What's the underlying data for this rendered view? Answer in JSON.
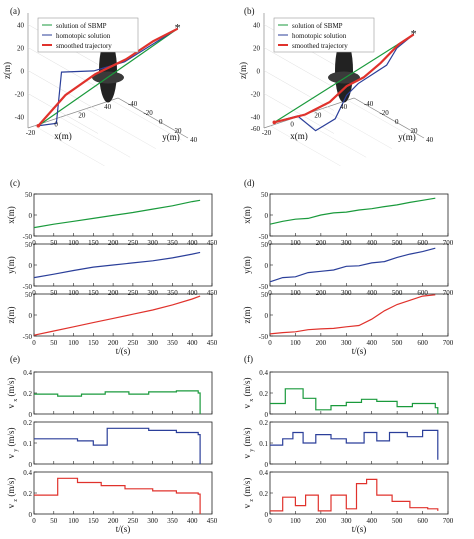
{
  "panel_labels": [
    "(a)",
    "(b)",
    "(c)",
    "(d)",
    "(e)",
    "(f)"
  ],
  "colors": {
    "green": "#1a9a3c",
    "blue": "#2b3f9a",
    "red": "#e0322c",
    "star": "#f08a24",
    "obstacle": "#222222"
  },
  "legend": [
    "solution of SBMP",
    "homotopic solution",
    "smoothed trajectory"
  ],
  "axis_labels": {
    "x3d": "x(m)",
    "y3d": "y(m)",
    "z3d": "z(m)",
    "x": "x(m)",
    "y": "y(m)",
    "z": "z(m)",
    "vx_main": "v",
    "vx_sub": "x",
    "vy_main": "v",
    "vy_sub": "y",
    "vz_main": "v",
    "vz_sub": "z",
    "vel_unit": "(m/s)",
    "time": "t/(s)"
  },
  "chart_data": [
    {
      "panel": "(a)",
      "type": "line",
      "view": "3d",
      "xlabel": "x(m)",
      "ylabel": "y(m)",
      "zlabel": "z(m)",
      "legend": [
        "solution of SBMP",
        "homotopic solution",
        "smoothed trajectory"
      ],
      "zticks": [
        "40",
        "20",
        "0",
        "-20",
        "-40"
      ],
      "xticks": [
        "-20",
        "0",
        "20",
        "40"
      ],
      "yticks": [
        "-40",
        "-20",
        "0",
        "20",
        "40"
      ],
      "series": [
        {
          "name": "solution of SBMP",
          "color": "green",
          "points": [
            [
              -20,
              -40,
              -48
            ],
            [
              40,
              40,
              45
            ]
          ]
        },
        {
          "name": "homotopic solution",
          "color": "blue",
          "points": [
            [
              -20,
              -40,
              -48
            ],
            [
              -12,
              -30,
              -45
            ],
            [
              -5,
              -35,
              -5
            ],
            [
              5,
              -10,
              2
            ],
            [
              18,
              8,
              12
            ],
            [
              40,
              40,
              45
            ]
          ]
        },
        {
          "name": "smoothed trajectory",
          "color": "red",
          "points": [
            [
              -20,
              -40,
              -48
            ],
            [
              -8,
              -25,
              -20
            ],
            [
              5,
              -8,
              0
            ],
            [
              18,
              10,
              15
            ],
            [
              30,
              25,
              32
            ],
            [
              40,
              40,
              45
            ]
          ]
        }
      ],
      "start": [
        -20,
        -40,
        -48
      ],
      "goal": [
        40,
        40,
        45
      ]
    },
    {
      "panel": "(b)",
      "type": "line",
      "view": "3d",
      "xlabel": "x(m)",
      "ylabel": "y(m)",
      "zlabel": "z(m)",
      "legend": [
        "solution of SBMP",
        "homotopic solution",
        "smoothed trajectory"
      ],
      "zticks": [
        "40",
        "20",
        "0",
        "-20",
        "-40",
        "-60"
      ],
      "xticks": [
        "-20",
        "0",
        "20",
        "40"
      ],
      "yticks": [
        "-40",
        "-20",
        "0",
        "20",
        "40"
      ],
      "series": [
        {
          "name": "solution of SBMP",
          "color": "green",
          "points": [
            [
              -20,
              -40,
              -45
            ],
            [
              40,
              40,
              40
            ]
          ]
        },
        {
          "name": "homotopic solution",
          "color": "blue",
          "points": [
            [
              -20,
              -40,
              -45
            ],
            [
              -8,
              -30,
              -40
            ],
            [
              0,
              -20,
              -52
            ],
            [
              8,
              -8,
              -40
            ],
            [
              12,
              0,
              -18
            ],
            [
              15,
              10,
              -5
            ],
            [
              20,
              20,
              5
            ],
            [
              25,
              30,
              15
            ],
            [
              30,
              35,
              30
            ],
            [
              40,
              40,
              40
            ]
          ]
        },
        {
          "name": "smoothed trajectory",
          "color": "red",
          "points": [
            [
              -20,
              -40,
              -45
            ],
            [
              -5,
              -25,
              -38
            ],
            [
              5,
              -10,
              -25
            ],
            [
              12,
              0,
              -10
            ],
            [
              18,
              12,
              0
            ],
            [
              24,
              24,
              15
            ],
            [
              32,
              34,
              32
            ],
            [
              40,
              40,
              40
            ]
          ]
        }
      ],
      "start": [
        -20,
        -40,
        -45
      ],
      "goal": [
        40,
        40,
        40
      ]
    },
    {
      "panel": "(c)",
      "type": "line",
      "xlabel": "t/(s)",
      "x_ticks": [
        0,
        50,
        100,
        150,
        200,
        250,
        300,
        350,
        400,
        450
      ],
      "xlim": [
        0,
        450
      ],
      "subplots": [
        {
          "ylabel": "x(m)",
          "ylim": [
            -50,
            50
          ],
          "yticks": [
            -50,
            0,
            50
          ],
          "color": "green",
          "x": [
            0,
            50,
            100,
            150,
            200,
            250,
            300,
            350,
            400,
            420
          ],
          "y": [
            -30,
            -22,
            -15,
            -8,
            -1,
            6,
            14,
            22,
            32,
            35
          ]
        },
        {
          "ylabel": "y(m)",
          "ylim": [
            -50,
            50
          ],
          "yticks": [
            -50,
            0,
            50
          ],
          "color": "blue",
          "x": [
            0,
            50,
            100,
            150,
            200,
            250,
            300,
            350,
            400,
            420
          ],
          "y": [
            -30,
            -22,
            -13,
            -5,
            0,
            5,
            10,
            17,
            26,
            30
          ]
        },
        {
          "ylabel": "z(m)",
          "ylim": [
            -50,
            50
          ],
          "yticks": [
            -50,
            0,
            50
          ],
          "color": "red",
          "x": [
            0,
            50,
            100,
            150,
            200,
            250,
            300,
            350,
            400,
            420
          ],
          "y": [
            -48,
            -38,
            -28,
            -18,
            -8,
            2,
            12,
            24,
            38,
            45
          ]
        }
      ]
    },
    {
      "panel": "(d)",
      "type": "line",
      "xlabel": "t/(s)",
      "x_ticks": [
        0,
        100,
        200,
        300,
        400,
        500,
        600,
        700
      ],
      "xlim": [
        0,
        700
      ],
      "subplots": [
        {
          "ylabel": "x(m)",
          "ylim": [
            -50,
            50
          ],
          "yticks": [
            -50,
            0,
            50
          ],
          "color": "green",
          "x": [
            0,
            50,
            100,
            150,
            200,
            250,
            300,
            350,
            400,
            450,
            500,
            550,
            600,
            650
          ],
          "y": [
            -22,
            -15,
            -10,
            -8,
            0,
            5,
            7,
            12,
            15,
            20,
            24,
            30,
            35,
            40
          ]
        },
        {
          "ylabel": "y(m)",
          "ylim": [
            -50,
            50
          ],
          "yticks": [
            -50,
            0,
            50
          ],
          "color": "blue",
          "x": [
            0,
            50,
            100,
            150,
            200,
            250,
            300,
            350,
            400,
            450,
            500,
            550,
            600,
            650
          ],
          "y": [
            -40,
            -30,
            -28,
            -18,
            -15,
            -12,
            -3,
            -2,
            5,
            8,
            18,
            26,
            32,
            40
          ]
        },
        {
          "ylabel": "z(m)",
          "ylim": [
            -50,
            50
          ],
          "yticks": [
            -50,
            0,
            50
          ],
          "color": "red",
          "x": [
            0,
            50,
            100,
            150,
            200,
            250,
            300,
            350,
            400,
            450,
            500,
            550,
            600,
            650
          ],
          "y": [
            -45,
            -42,
            -40,
            -35,
            -33,
            -32,
            -28,
            -25,
            -10,
            10,
            25,
            35,
            45,
            48
          ]
        }
      ]
    },
    {
      "panel": "(e)",
      "type": "line",
      "step": true,
      "xlabel": "t/(s)",
      "x_ticks": [
        0,
        50,
        100,
        150,
        200,
        250,
        300,
        350,
        400,
        450
      ],
      "xlim": [
        0,
        450
      ],
      "subplots": [
        {
          "ylabel": "vx(m/s)",
          "ylim": [
            0,
            0.4
          ],
          "yticks": [
            0,
            0.2,
            0.4
          ],
          "color": "green",
          "x": [
            0,
            60,
            60,
            120,
            120,
            180,
            180,
            240,
            240,
            290,
            290,
            360,
            360,
            415,
            415,
            420,
            420
          ],
          "y": [
            0.19,
            0.19,
            0.17,
            0.17,
            0.19,
            0.19,
            0.21,
            0.21,
            0.19,
            0.19,
            0.21,
            0.21,
            0.22,
            0.22,
            0.2,
            0.2,
            0
          ]
        },
        {
          "ylabel": "vy(m/s)",
          "ylim": [
            0,
            0.2
          ],
          "yticks": [
            0,
            0.1,
            0.2
          ],
          "color": "blue",
          "x": [
            0,
            110,
            110,
            150,
            150,
            185,
            185,
            290,
            290,
            360,
            360,
            415,
            415,
            420,
            420
          ],
          "y": [
            0.12,
            0.12,
            0.11,
            0.11,
            0.09,
            0.09,
            0.17,
            0.17,
            0.16,
            0.16,
            0.15,
            0.15,
            0.14,
            0.14,
            0
          ]
        },
        {
          "ylabel": "vz(m/s)",
          "ylim": [
            0,
            0.4
          ],
          "yticks": [
            0,
            0.2,
            0.4
          ],
          "color": "red",
          "x": [
            0,
            60,
            60,
            110,
            110,
            170,
            170,
            230,
            230,
            300,
            300,
            360,
            360,
            415,
            415,
            420,
            420
          ],
          "y": [
            0.18,
            0.18,
            0.34,
            0.34,
            0.3,
            0.3,
            0.27,
            0.27,
            0.24,
            0.24,
            0.22,
            0.22,
            0.2,
            0.2,
            0.19,
            0.19,
            0
          ]
        }
      ]
    },
    {
      "panel": "(f)",
      "type": "line",
      "step": true,
      "xlabel": "t/(s)",
      "x_ticks": [
        0,
        100,
        200,
        300,
        400,
        500,
        600,
        700
      ],
      "xlim": [
        0,
        700
      ],
      "subplots": [
        {
          "ylabel": "vx(m/s)",
          "ylim": [
            0,
            0.4
          ],
          "yticks": [
            0,
            0.2,
            0.4
          ],
          "color": "green",
          "x": [
            0,
            60,
            60,
            130,
            130,
            180,
            180,
            240,
            240,
            300,
            300,
            360,
            360,
            420,
            420,
            500,
            500,
            560,
            560,
            650,
            650,
            660,
            660
          ],
          "y": [
            0.1,
            0.1,
            0.24,
            0.24,
            0.15,
            0.15,
            0.04,
            0.04,
            0.08,
            0.08,
            0.11,
            0.11,
            0.14,
            0.14,
            0.12,
            0.12,
            0.07,
            0.07,
            0.1,
            0.1,
            0.06,
            0.06,
            0
          ]
        },
        {
          "ylabel": "vy(m/s)",
          "ylim": [
            0,
            0.2
          ],
          "yticks": [
            0,
            0.1,
            0.2
          ],
          "color": "blue",
          "x": [
            0,
            50,
            50,
            90,
            90,
            130,
            130,
            180,
            180,
            240,
            240,
            300,
            300,
            370,
            370,
            420,
            420,
            470,
            470,
            540,
            540,
            600,
            600,
            660,
            660
          ],
          "y": [
            0.09,
            0.09,
            0.12,
            0.12,
            0.15,
            0.15,
            0.1,
            0.1,
            0.14,
            0.14,
            0.12,
            0.12,
            0.1,
            0.1,
            0.15,
            0.15,
            0.11,
            0.11,
            0.15,
            0.15,
            0.13,
            0.13,
            0.16,
            0.16,
            0.02
          ]
        },
        {
          "ylabel": "vz(m/s)",
          "ylim": [
            0,
            0.4
          ],
          "yticks": [
            0,
            0.2,
            0.4
          ],
          "color": "red",
          "x": [
            0,
            50,
            50,
            100,
            100,
            140,
            140,
            190,
            190,
            240,
            240,
            300,
            300,
            340,
            340,
            380,
            380,
            420,
            420,
            480,
            480,
            550,
            550,
            620,
            620,
            660,
            660
          ],
          "y": [
            0.03,
            0.03,
            0.16,
            0.16,
            0.08,
            0.08,
            0.18,
            0.18,
            0.03,
            0.03,
            0.18,
            0.18,
            0.05,
            0.05,
            0.29,
            0.29,
            0.33,
            0.33,
            0.18,
            0.18,
            0.12,
            0.12,
            0.06,
            0.06,
            0.05,
            0.05,
            0.03
          ]
        }
      ]
    }
  ]
}
